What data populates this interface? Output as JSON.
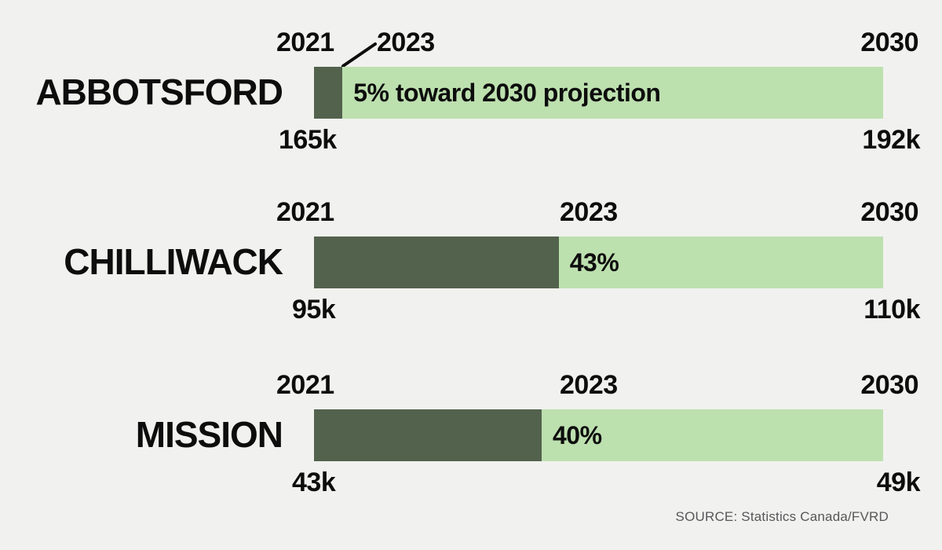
{
  "chart_data": {
    "type": "bar",
    "subtype": "progress-toward-projection",
    "legend_position": "none",
    "grid": false,
    "colors": {
      "progress_fill": "#53624d",
      "remaining_fill": "#bde0af",
      "background": "#f1f1ef",
      "text": "#0d0d0d",
      "source_text": "#57575a"
    },
    "rows": [
      {
        "city": "ABBOTSFORD",
        "start_year": "2021",
        "current_year": "2023",
        "end_year": "2030",
        "start_value": "165k",
        "end_value": "192k",
        "percent": 5,
        "bar_label": "5% toward 2030 projection"
      },
      {
        "city": "CHILLIWACK",
        "start_year": "2021",
        "current_year": "2023",
        "end_year": "2030",
        "start_value": "95k",
        "end_value": "110k",
        "percent": 43,
        "bar_label": "43%"
      },
      {
        "city": "MISSION",
        "start_year": "2021",
        "current_year": "2023",
        "end_year": "2030",
        "start_value": "43k",
        "end_value": "49k",
        "percent": 40,
        "bar_label": "40%"
      }
    ],
    "source": "SOURCE: Statistics Canada/FVRD"
  }
}
